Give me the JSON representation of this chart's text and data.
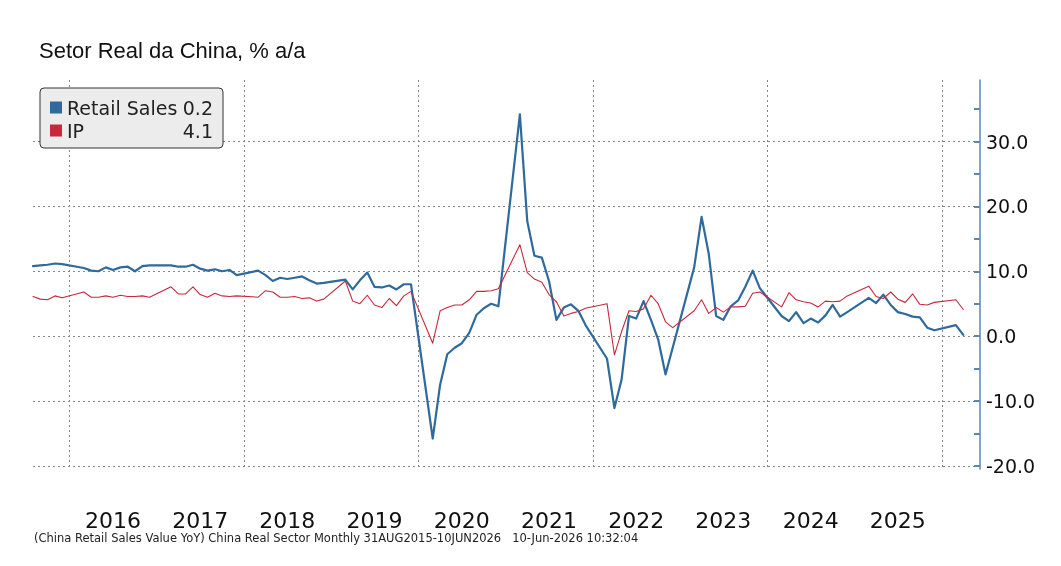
{
  "chart_data": {
    "type": "line",
    "title": "Setor Real da China, % a/a",
    "annotations": [
      "(China Retail Sales Value YoY) China Real Sector Monthly 31AUG2015-10JUN2026   10-Jun-2026 10:32:04"
    ],
    "x": [
      "2015-08",
      "2015-09",
      "2015-10",
      "2015-11",
      "2015-12",
      "2016-03",
      "2016-04",
      "2016-05",
      "2016-06",
      "2016-07",
      "2016-08",
      "2016-09",
      "2016-10",
      "2016-11",
      "2016-12",
      "2017-03",
      "2017-04",
      "2017-05",
      "2017-06",
      "2017-07",
      "2017-08",
      "2017-09",
      "2017-10",
      "2017-11",
      "2017-12",
      "2018-03",
      "2018-04",
      "2018-05",
      "2018-06",
      "2018-07",
      "2018-08",
      "2018-09",
      "2018-10",
      "2018-11",
      "2018-12",
      "2019-03",
      "2019-04",
      "2019-05",
      "2019-06",
      "2019-07",
      "2019-08",
      "2019-09",
      "2019-10",
      "2019-11",
      "2019-12",
      "2020-03",
      "2020-04",
      "2020-05",
      "2020-06",
      "2020-07",
      "2020-08",
      "2020-09",
      "2020-10",
      "2020-11",
      "2020-12",
      "2021-03",
      "2021-04",
      "2021-05",
      "2021-06",
      "2021-07",
      "2021-08",
      "2021-09",
      "2021-10",
      "2021-11",
      "2021-12",
      "2022-03",
      "2022-04",
      "2022-05",
      "2022-06",
      "2022-07",
      "2022-08",
      "2022-09",
      "2022-10",
      "2022-11",
      "2022-12",
      "2023-03",
      "2023-04",
      "2023-05",
      "2023-06",
      "2023-07",
      "2023-08",
      "2023-09",
      "2023-10",
      "2023-11",
      "2023-12",
      "2024-03",
      "2024-04",
      "2024-05",
      "2024-06",
      "2024-07",
      "2024-08",
      "2024-09",
      "2024-10",
      "2024-11",
      "2024-12",
      "2025-03",
      "2025-04",
      "2025-05",
      "2025-06",
      "2025-07",
      "2025-08",
      "2025-09",
      "2025-10",
      "2025-11",
      "2025-12",
      "2026-03",
      "2026-04"
    ],
    "series": [
      {
        "name": "Retail Sales 0.2",
        "color": "#2f6a9c",
        "values": [
          10.8,
          10.9,
          11.0,
          11.2,
          11.1,
          10.5,
          10.1,
          10.0,
          10.6,
          10.2,
          10.6,
          10.7,
          10.0,
          10.8,
          10.9,
          10.9,
          10.7,
          10.7,
          11.0,
          10.4,
          10.1,
          10.3,
          10.0,
          10.2,
          9.4,
          10.1,
          9.4,
          8.5,
          9.0,
          8.8,
          9.0,
          9.2,
          8.6,
          8.1,
          8.2,
          8.7,
          7.2,
          8.6,
          9.8,
          7.6,
          7.5,
          7.8,
          7.2,
          8.0,
          8.0,
          -15.8,
          -7.5,
          -2.8,
          -1.8,
          -1.1,
          0.5,
          3.3,
          4.3,
          5.0,
          4.6,
          34.2,
          17.7,
          12.4,
          12.1,
          8.5,
          2.5,
          4.4,
          4.9,
          3.9,
          1.7,
          -3.5,
          -11.1,
          -6.7,
          3.1,
          2.7,
          5.4,
          2.5,
          -0.5,
          -5.9,
          -1.8,
          10.6,
          18.4,
          12.7,
          3.1,
          2.5,
          4.6,
          5.5,
          7.6,
          10.1,
          7.4,
          3.1,
          2.3,
          3.7,
          2.0,
          2.7,
          2.1,
          3.2,
          4.8,
          3.0,
          3.7,
          5.9,
          5.1,
          6.4,
          4.8,
          3.7,
          3.4,
          3.0,
          2.9,
          1.3,
          0.9,
          1.7,
          0.2
        ]
      },
      {
        "name": "IP 4.1",
        "color": "#c8283c",
        "values": [
          6.1,
          5.7,
          5.6,
          6.2,
          5.9,
          6.8,
          6.0,
          6.0,
          6.2,
          6.0,
          6.3,
          6.1,
          6.1,
          6.2,
          6.0,
          7.6,
          6.5,
          6.5,
          7.6,
          6.4,
          6.0,
          6.6,
          6.2,
          6.1,
          6.2,
          6.0,
          7.0,
          6.8,
          6.0,
          6.0,
          6.1,
          5.8,
          5.9,
          5.4,
          5.7,
          8.5,
          5.4,
          5.0,
          6.3,
          4.8,
          4.4,
          5.8,
          4.7,
          6.2,
          6.9,
          -1.1,
          3.9,
          4.4,
          4.8,
          4.8,
          5.6,
          6.9,
          6.9,
          7.0,
          7.3,
          14.1,
          9.8,
          8.8,
          8.3,
          6.4,
          5.3,
          3.1,
          3.5,
          3.8,
          4.3,
          5.0,
          -2.9,
          0.7,
          3.9,
          3.8,
          4.2,
          6.3,
          5.0,
          2.2,
          1.3,
          3.9,
          5.6,
          3.5,
          4.4,
          3.7,
          4.5,
          4.5,
          4.6,
          6.6,
          6.8,
          4.5,
          6.7,
          5.6,
          5.3,
          5.1,
          4.5,
          5.4,
          5.3,
          5.4,
          6.2,
          7.7,
          6.1,
          5.8,
          6.8,
          5.7,
          5.2,
          6.5,
          4.9,
          4.8,
          5.2,
          5.6,
          4.1
        ]
      }
    ],
    "xlim": [
      "2015-08",
      "2026-06-10"
    ],
    "xticks": [
      {
        "value": "2016-01",
        "label": null
      },
      {
        "value": "2018-01",
        "label": null
      },
      {
        "value": "2020-01",
        "label": null
      },
      {
        "value": "2022-01",
        "label": null
      },
      {
        "value": "2024-01",
        "label": null
      },
      {
        "value": "2026-01",
        "label": null
      },
      {
        "value": "2016-07",
        "label": "2016"
      },
      {
        "value": "2017-07",
        "label": "2017"
      },
      {
        "value": "2018-07",
        "label": "2018"
      },
      {
        "value": "2019-07",
        "label": "2019"
      },
      {
        "value": "2020-07",
        "label": "2020"
      },
      {
        "value": "2021-07",
        "label": "2021"
      },
      {
        "value": "2022-07",
        "label": "2022"
      },
      {
        "value": "2023-07",
        "label": "2023"
      },
      {
        "value": "2024-07",
        "label": "2024"
      },
      {
        "value": "2025-07",
        "label": "2025"
      }
    ],
    "ylim": [
      -20.5,
      39.5
    ],
    "yticks": [
      {
        "value": -20,
        "label": "-20.0"
      },
      {
        "value": -15,
        "label": null
      },
      {
        "value": -10,
        "label": "-10.0"
      },
      {
        "value": -5,
        "label": null
      },
      {
        "value": 0,
        "label": "0.0"
      },
      {
        "value": 5,
        "label": null
      },
      {
        "value": 10,
        "label": "10.0"
      },
      {
        "value": 15,
        "label": null
      },
      {
        "value": 20,
        "label": "20.0"
      },
      {
        "value": 25,
        "label": null
      },
      {
        "value": 30,
        "label": "30.0"
      },
      {
        "value": 35,
        "label": null
      }
    ],
    "grid": true,
    "legend": "top left",
    "marker": "none",
    "line_style": "solid"
  }
}
